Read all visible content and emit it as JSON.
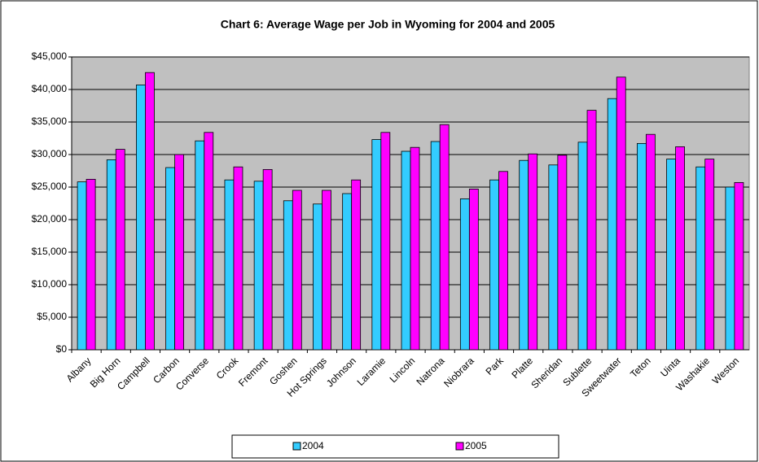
{
  "chart_data": {
    "type": "bar",
    "title": "Chart 6: Average Wage per Job in Wyoming for 2004 and 2005",
    "categories": [
      "Albany",
      "Big Horn",
      "Campbell",
      "Carbon",
      "Converse",
      "Crook",
      "Fremont",
      "Goshen",
      "Hot Springs",
      "Johnson",
      "Laramie",
      "Lincoln",
      "Natrona",
      "Niobrara",
      "Park",
      "Platte",
      "Sheridan",
      "Sublette",
      "Sweetwater",
      "Teton",
      "Uinta",
      "Washakie",
      "Weston"
    ],
    "series": [
      {
        "name": "2004",
        "color": "#33ccff",
        "values": [
          25800,
          29200,
          40700,
          28000,
          32100,
          26100,
          25900,
          22900,
          22400,
          24000,
          32300,
          30500,
          32000,
          23200,
          26100,
          29100,
          28400,
          31900,
          38600,
          31700,
          29300,
          28100,
          25000
        ]
      },
      {
        "name": "2005",
        "color": "#ff00ff",
        "values": [
          26200,
          30800,
          42600,
          30000,
          33400,
          28100,
          27700,
          24500,
          24500,
          26100,
          33400,
          31100,
          34600,
          24700,
          27400,
          30100,
          29900,
          36800,
          41900,
          33100,
          31200,
          29300,
          25700
        ]
      }
    ],
    "ylim": [
      0,
      45000
    ],
    "yticks": [
      {
        "value": 0,
        "label": "$0"
      },
      {
        "value": 5000,
        "label": "$5,000"
      },
      {
        "value": 10000,
        "label": "$10,000"
      },
      {
        "value": 15000,
        "label": "$15,000"
      },
      {
        "value": 20000,
        "label": "$20,000"
      },
      {
        "value": 25000,
        "label": "$25,000"
      },
      {
        "value": 30000,
        "label": "$30,000"
      },
      {
        "value": 35000,
        "label": "$35,000"
      },
      {
        "value": 40000,
        "label": "$40,000"
      },
      {
        "value": 45000,
        "label": "$45,000"
      }
    ],
    "grid": true,
    "legend": "bottom"
  }
}
